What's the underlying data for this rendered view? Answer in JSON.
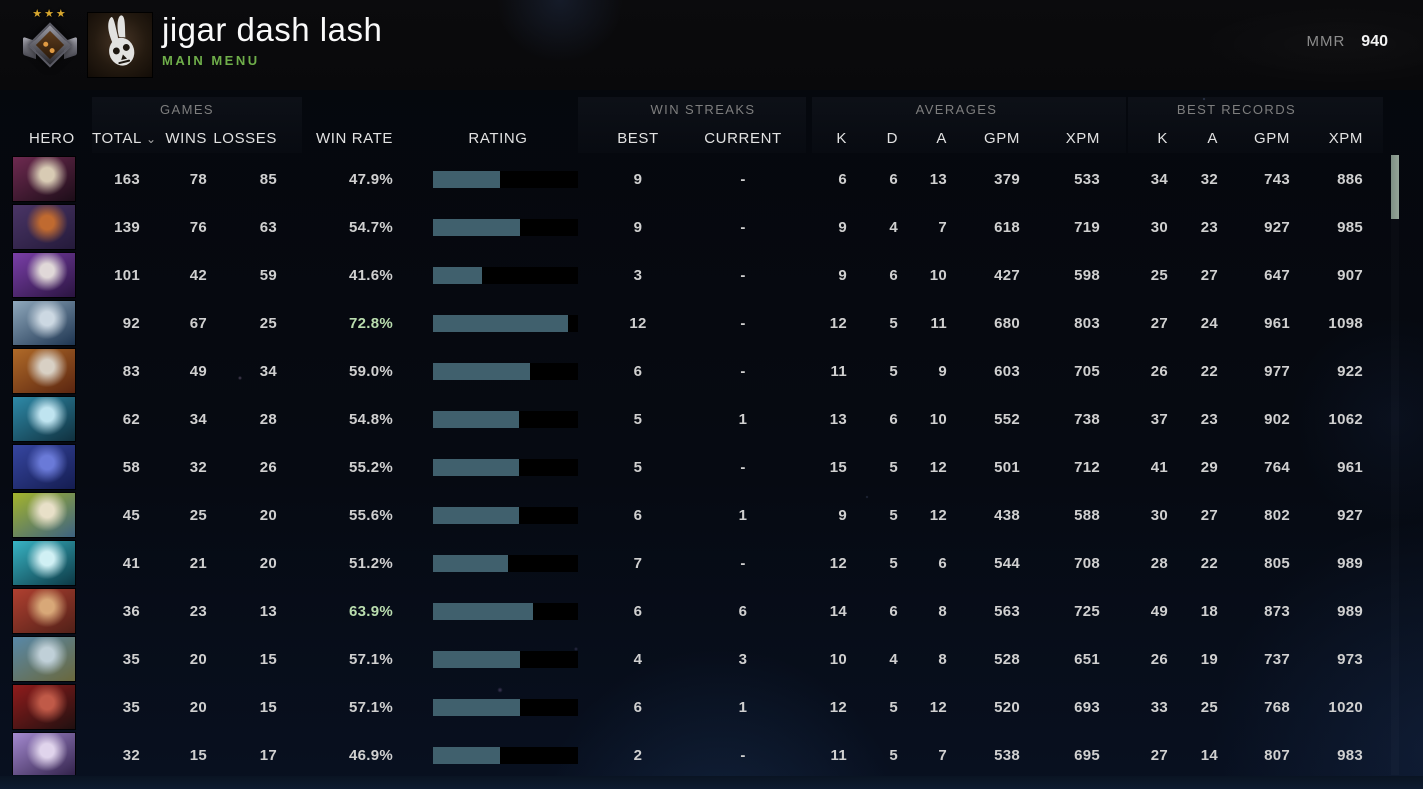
{
  "topbar": {
    "player_name": "jigar dash lash",
    "main_menu_label": "MAIN MENU",
    "mmr_label": "MMR",
    "mmr_value": "940",
    "medal_stars": "★★★"
  },
  "table": {
    "groups": [
      {
        "label": "GAMES"
      },
      {
        "label": "WIN STREAKS"
      },
      {
        "label": "AVERAGES"
      },
      {
        "label": "BEST RECORDS"
      }
    ],
    "sort_caret": "⌄",
    "columns": [
      {
        "id": "hero",
        "label": "HERO",
        "align": "hero-h"
      },
      {
        "id": "total",
        "label": "TOTAL",
        "align": "ar",
        "sorted": true
      },
      {
        "id": "wins",
        "label": "WINS",
        "align": "ar"
      },
      {
        "id": "losses",
        "label": "LOSSES",
        "align": "ar"
      },
      {
        "id": "win-rate",
        "label": "WIN RATE",
        "align": "ar"
      },
      {
        "id": "rating",
        "label": "RATING",
        "align": "rating-h"
      },
      {
        "id": "streak-best",
        "label": "BEST",
        "align": "ac"
      },
      {
        "id": "streak-current",
        "label": "CURRENT",
        "align": "ac"
      },
      {
        "id": "avg-kills",
        "label": "K",
        "align": "ar"
      },
      {
        "id": "avg-deaths",
        "label": "D",
        "align": "ar"
      },
      {
        "id": "avg-assists",
        "label": "A",
        "align": "ar"
      },
      {
        "id": "avg-gpm",
        "label": "GPM",
        "align": "ar"
      },
      {
        "id": "avg-xpm",
        "label": "XPM",
        "align": "ar"
      },
      {
        "id": "rec-kills",
        "label": "K",
        "align": "ar"
      },
      {
        "id": "rec-assists",
        "label": "A",
        "align": "ar"
      },
      {
        "id": "rec-gpm",
        "label": "GPM",
        "align": "ar"
      },
      {
        "id": "rec-xpm",
        "label": "XPM",
        "align": "ar"
      }
    ],
    "colors": {
      "rating_fill": "#40606d",
      "rating_track": "#000000",
      "winrate_highlight": "#b9dcae",
      "scrollbar_thumb": "#8a9a8e"
    },
    "rows": [
      {
        "total": "163",
        "wins": "78",
        "losses": "85",
        "win_rate": "47.9%",
        "highlight": false,
        "rating_pct": 46,
        "streak_best": "9",
        "streak_current": "-",
        "avg_k": "6",
        "avg_d": "6",
        "avg_a": "13",
        "avg_gpm": "379",
        "avg_xpm": "533",
        "rec_k": "34",
        "rec_a": "32",
        "rec_gpm": "743",
        "rec_xpm": "886",
        "portrait": [
          "#6e2a50",
          "#d8cbb4",
          "#1c0d18"
        ]
      },
      {
        "total": "139",
        "wins": "76",
        "losses": "63",
        "win_rate": "54.7%",
        "highlight": false,
        "rating_pct": 60,
        "streak_best": "9",
        "streak_current": "-",
        "avg_k": "9",
        "avg_d": "4",
        "avg_a": "7",
        "avg_gpm": "618",
        "avg_xpm": "719",
        "rec_k": "30",
        "rec_a": "23",
        "rec_gpm": "927",
        "rec_xpm": "985",
        "portrait": [
          "#4a3566",
          "#c06a30",
          "#241a3a"
        ]
      },
      {
        "total": "101",
        "wins": "42",
        "losses": "59",
        "win_rate": "41.6%",
        "highlight": false,
        "rating_pct": 34,
        "streak_best": "3",
        "streak_current": "-",
        "avg_k": "9",
        "avg_d": "6",
        "avg_a": "10",
        "avg_gpm": "427",
        "avg_xpm": "598",
        "rec_k": "25",
        "rec_a": "27",
        "rec_gpm": "647",
        "rec_xpm": "907",
        "portrait": [
          "#7a3fa8",
          "#e0d8d8",
          "#2a1440"
        ]
      },
      {
        "total": "92",
        "wins": "67",
        "losses": "25",
        "win_rate": "72.8%",
        "highlight": true,
        "rating_pct": 93,
        "streak_best": "12",
        "streak_current": "-",
        "avg_k": "12",
        "avg_d": "5",
        "avg_a": "11",
        "avg_gpm": "680",
        "avg_xpm": "803",
        "rec_k": "27",
        "rec_a": "24",
        "rec_gpm": "961",
        "rec_xpm": "1098",
        "portrait": [
          "#8fa8bc",
          "#ccd8e2",
          "#1d3450"
        ]
      },
      {
        "total": "83",
        "wins": "49",
        "losses": "34",
        "win_rate": "59.0%",
        "highlight": false,
        "rating_pct": 67,
        "streak_best": "6",
        "streak_current": "-",
        "avg_k": "11",
        "avg_d": "5",
        "avg_a": "9",
        "avg_gpm": "603",
        "avg_xpm": "705",
        "rec_k": "26",
        "rec_a": "22",
        "rec_gpm": "977",
        "rec_xpm": "922",
        "portrait": [
          "#b06a28",
          "#d8d0c4",
          "#5a2510"
        ]
      },
      {
        "total": "62",
        "wins": "34",
        "losses": "28",
        "win_rate": "54.8%",
        "highlight": false,
        "rating_pct": 59,
        "streak_best": "5",
        "streak_current": "1",
        "avg_k": "13",
        "avg_d": "6",
        "avg_a": "10",
        "avg_gpm": "552",
        "avg_xpm": "738",
        "rec_k": "37",
        "rec_a": "23",
        "rec_gpm": "902",
        "rec_xpm": "1062",
        "portrait": [
          "#2e8aa8",
          "#bfe4f0",
          "#10303e"
        ]
      },
      {
        "total": "58",
        "wins": "32",
        "losses": "26",
        "win_rate": "55.2%",
        "highlight": false,
        "rating_pct": 59,
        "streak_best": "5",
        "streak_current": "-",
        "avg_k": "15",
        "avg_d": "5",
        "avg_a": "12",
        "avg_gpm": "501",
        "avg_xpm": "712",
        "rec_k": "41",
        "rec_a": "29",
        "rec_gpm": "764",
        "rec_xpm": "961",
        "portrait": [
          "#3646a0",
          "#6a7ad8",
          "#141c50"
        ]
      },
      {
        "total": "45",
        "wins": "25",
        "losses": "20",
        "win_rate": "55.6%",
        "highlight": false,
        "rating_pct": 59,
        "streak_best": "6",
        "streak_current": "1",
        "avg_k": "9",
        "avg_d": "5",
        "avg_a": "12",
        "avg_gpm": "438",
        "avg_xpm": "588",
        "rec_k": "30",
        "rec_a": "27",
        "rec_gpm": "802",
        "rec_xpm": "927",
        "portrait": [
          "#a4b42c",
          "#e8e0c8",
          "#3c6282"
        ]
      },
      {
        "total": "41",
        "wins": "21",
        "losses": "20",
        "win_rate": "51.2%",
        "highlight": false,
        "rating_pct": 52,
        "streak_best": "7",
        "streak_current": "-",
        "avg_k": "12",
        "avg_d": "5",
        "avg_a": "6",
        "avg_gpm": "544",
        "avg_xpm": "708",
        "rec_k": "28",
        "rec_a": "22",
        "rec_gpm": "805",
        "rec_xpm": "989",
        "portrait": [
          "#38b4c4",
          "#d0f0f4",
          "#0c3844"
        ]
      },
      {
        "total": "36",
        "wins": "23",
        "losses": "13",
        "win_rate": "63.9%",
        "highlight": true,
        "rating_pct": 69,
        "streak_best": "6",
        "streak_current": "6",
        "avg_k": "14",
        "avg_d": "6",
        "avg_a": "8",
        "avg_gpm": "563",
        "avg_xpm": "725",
        "rec_k": "49",
        "rec_a": "18",
        "rec_gpm": "873",
        "rec_xpm": "989",
        "portrait": [
          "#b04030",
          "#d8a878",
          "#502018"
        ]
      },
      {
        "total": "35",
        "wins": "20",
        "losses": "15",
        "win_rate": "57.1%",
        "highlight": false,
        "rating_pct": 60,
        "streak_best": "4",
        "streak_current": "3",
        "avg_k": "10",
        "avg_d": "4",
        "avg_a": "8",
        "avg_gpm": "528",
        "avg_xpm": "651",
        "rec_k": "26",
        "rec_a": "19",
        "rec_gpm": "737",
        "rec_xpm": "973",
        "portrait": [
          "#5888a8",
          "#c0d0d8",
          "#6a683c"
        ]
      },
      {
        "total": "35",
        "wins": "20",
        "losses": "15",
        "win_rate": "57.1%",
        "highlight": false,
        "rating_pct": 60,
        "streak_best": "6",
        "streak_current": "1",
        "avg_k": "12",
        "avg_d": "5",
        "avg_a": "12",
        "avg_gpm": "520",
        "avg_xpm": "693",
        "rec_k": "33",
        "rec_a": "25",
        "rec_gpm": "768",
        "rec_xpm": "1020",
        "portrait": [
          "#901c1c",
          "#c05a48",
          "#201010"
        ]
      },
      {
        "total": "32",
        "wins": "15",
        "losses": "17",
        "win_rate": "46.9%",
        "highlight": false,
        "rating_pct": 46,
        "streak_best": "2",
        "streak_current": "-",
        "avg_k": "11",
        "avg_d": "5",
        "avg_a": "7",
        "avg_gpm": "538",
        "avg_xpm": "695",
        "rec_k": "27",
        "rec_a": "14",
        "rec_gpm": "807",
        "rec_xpm": "983",
        "portrait": [
          "#a48ad0",
          "#e0d4ec",
          "#302048"
        ]
      }
    ]
  }
}
